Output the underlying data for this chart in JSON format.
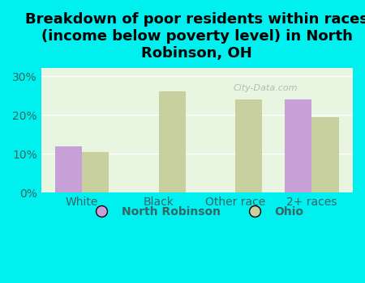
{
  "title": "Breakdown of poor residents within races\n(income below poverty level) in North\nRobinson, OH",
  "categories": [
    "White",
    "Black",
    "Other race",
    "2+ races"
  ],
  "north_robinson": [
    12.0,
    0,
    0,
    24.0
  ],
  "ohio": [
    10.5,
    26.0,
    24.0,
    19.5
  ],
  "bar_color_nr": "#c8a0d8",
  "bar_color_ohio": "#c8d0a0",
  "background_color": "#00f0f0",
  "plot_bg_color": "#e8f5e0",
  "yticks": [
    0,
    10,
    20,
    30
  ],
  "ylim": [
    0,
    32
  ],
  "title_fontsize": 13,
  "tick_fontsize": 10,
  "legend_label_nr": "North Robinson",
  "legend_label_ohio": "Ohio",
  "watermark": "City-Data.com",
  "tick_color": "#336666",
  "legend_fontsize": 10
}
